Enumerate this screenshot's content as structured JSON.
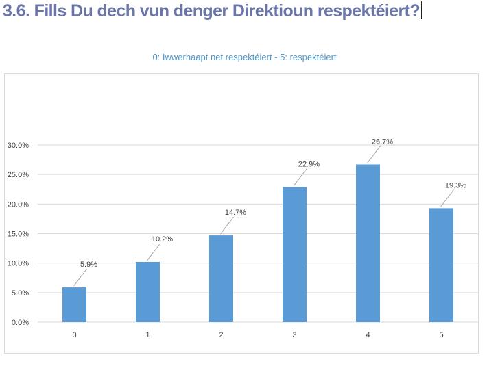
{
  "heading": "3.6. Fills Du dech vun denger Direktioun respektéiert?",
  "chart_data": {
    "type": "bar",
    "title": "0: Iwwerhaapt net respektéiert - 5: respektéiert",
    "xlabel": "",
    "ylabel": "",
    "categories": [
      "0",
      "1",
      "2",
      "3",
      "4",
      "5"
    ],
    "values": [
      5.9,
      10.2,
      14.7,
      22.9,
      26.7,
      19.3
    ],
    "value_labels": [
      "5.9%",
      "10.2%",
      "14.7%",
      "22.9%",
      "26.7%",
      "19.3%"
    ],
    "yticks": [
      "0.0%",
      "5.0%",
      "10.0%",
      "15.0%",
      "20.0%",
      "25.0%",
      "30.0%"
    ],
    "ylim": [
      0,
      30
    ],
    "grid": true,
    "legend": "none",
    "bar_color": "#5b9bd5",
    "grid_color": "#d9d9d9",
    "leader_color": "#a6a6a6"
  }
}
